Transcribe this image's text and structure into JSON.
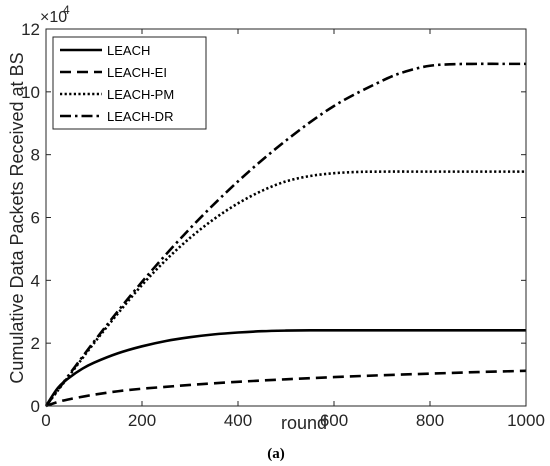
{
  "chart_data": {
    "type": "line",
    "xlabel": "round",
    "ylabel": "Cumulative  Data Packets Received at BS",
    "caption": "(a)",
    "y_multiplier": "×10",
    "y_multiplier_exp": "4",
    "xlim": [
      0,
      1000
    ],
    "ylim": [
      0,
      120000
    ],
    "x_ticks": [
      0,
      200,
      400,
      600,
      800,
      1000
    ],
    "y_ticks": [
      0,
      20000,
      40000,
      60000,
      80000,
      100000,
      120000
    ],
    "y_tick_labels": [
      "0",
      "2",
      "4",
      "6",
      "8",
      "10",
      "12"
    ],
    "legend_position": "top-left",
    "grid": false,
    "series": [
      {
        "name": "LEACH",
        "dash": "solid",
        "x": [
          0,
          25,
          50,
          75,
          100,
          150,
          200,
          250,
          300,
          350,
          400,
          450,
          500,
          550,
          600,
          700,
          800,
          900,
          1000
        ],
        "y": [
          0,
          5800,
          9200,
          11800,
          13800,
          16800,
          19000,
          20700,
          21900,
          22800,
          23400,
          23800,
          24000,
          24100,
          24100,
          24100,
          24100,
          24100,
          24100
        ]
      },
      {
        "name": "LEACH-EI",
        "dash": "dashed",
        "x": [
          0,
          25,
          50,
          100,
          150,
          200,
          250,
          300,
          400,
          500,
          600,
          700,
          800,
          900,
          1000
        ],
        "y": [
          0,
          1300,
          2200,
          3600,
          4700,
          5500,
          6100,
          6700,
          7700,
          8500,
          9200,
          9800,
          10300,
          10800,
          11200
        ]
      },
      {
        "name": "LEACH-PM",
        "dash": "dotted",
        "x": [
          0,
          50,
          100,
          150,
          200,
          250,
          300,
          350,
          400,
          450,
          500,
          550,
          600,
          650,
          700,
          800,
          900,
          1000
        ],
        "y": [
          0,
          10000,
          20000,
          29500,
          38500,
          46500,
          53500,
          59500,
          64500,
          68500,
          71500,
          73200,
          74100,
          74500,
          74600,
          74600,
          74600,
          74600
        ]
      },
      {
        "name": "LEACH-DR",
        "dash": "dashdot",
        "x": [
          0,
          100,
          200,
          300,
          400,
          500,
          600,
          700,
          750,
          800,
          850,
          900,
          950,
          1000
        ],
        "y": [
          0,
          20500,
          39500,
          56500,
          71500,
          84500,
          95500,
          103500,
          106500,
          108300,
          108800,
          108900,
          108900,
          108900
        ]
      }
    ]
  }
}
